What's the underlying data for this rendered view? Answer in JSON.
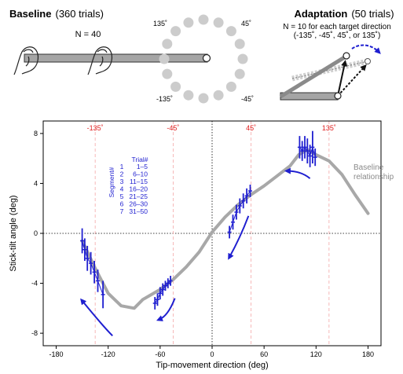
{
  "baseline_panel": {
    "title": "Baseline",
    "trials": "(360 trials)",
    "n_label": "N = 40",
    "direction_labels": {
      "top_left": "135˚",
      "top_right": "45˚",
      "bottom_left": "-135˚",
      "bottom_right": "-45˚"
    }
  },
  "adaptation_panel": {
    "title": "Adaptation",
    "trials": "(50 trials)",
    "n_label": "N = 10 for each target direction",
    "directions_note": "(-135˚, -45˚, 45˚, or 135˚)"
  },
  "chart_data": {
    "type": "line",
    "xlabel": "Tip-movement direction (deg)",
    "ylabel": "Stick-tilt angle (deg)",
    "xlim": [
      -195,
      195
    ],
    "ylim": [
      -9,
      9
    ],
    "xticks": [
      -180,
      -120,
      -60,
      0,
      60,
      120,
      180
    ],
    "yticks": [
      -8,
      -4,
      0,
      4,
      8
    ],
    "target_lines": [
      {
        "x": -135,
        "label": "-135˚"
      },
      {
        "x": -45,
        "label": "-45˚"
      },
      {
        "x": 45,
        "label": "45˚"
      },
      {
        "x": 135,
        "label": "135˚"
      }
    ],
    "zero_lines": true,
    "baseline": {
      "name": "Baseline relationship",
      "color": "#a8a8a8",
      "x": [
        -150,
        -135,
        -120,
        -105,
        -90,
        -80,
        -60,
        -45,
        -30,
        -15,
        0,
        15,
        30,
        45,
        60,
        75,
        90,
        100,
        110,
        120,
        135,
        150,
        165,
        180
      ],
      "y": [
        -0.6,
        -2.8,
        -4.8,
        -5.8,
        -6.0,
        -5.3,
        -4.5,
        -3.7,
        -2.7,
        -1.5,
        0.1,
        1.3,
        2.3,
        3.1,
        3.8,
        4.6,
        5.4,
        6.3,
        6.7,
        6.3,
        5.8,
        4.7,
        3.1,
        1.6
      ]
    },
    "adaptation": {
      "color": "#1f1fd0",
      "legend_title": "Trial#",
      "legend_axis": "Segment#",
      "segments": [
        {
          "segment": "1",
          "trials": "1–5"
        },
        {
          "segment": "2",
          "trials": "6–10"
        },
        {
          "segment": "3",
          "trials": "11–15"
        },
        {
          "segment": "4",
          "trials": "16–20"
        },
        {
          "segment": "5",
          "trials": "21–25"
        },
        {
          "segment": "6",
          "trials": "26–30"
        },
        {
          "segment": "7",
          "trials": "31–50"
        }
      ],
      "groups": [
        {
          "target": -135,
          "x": [
            -150,
            -147,
            -144,
            -140,
            -136,
            -132,
            -126
          ],
          "y": [
            -0.6,
            -1.3,
            -2.0,
            -2.4,
            -3.1,
            -3.8,
            -4.9
          ],
          "err": [
            1.0,
            0.9,
            1.0,
            0.9,
            0.9,
            0.9,
            1.1
          ]
        },
        {
          "target": -45,
          "x": [
            -66,
            -63,
            -60,
            -57,
            -54,
            -51,
            -48
          ],
          "y": [
            -5.6,
            -5.3,
            -4.8,
            -4.5,
            -4.2,
            -4.0,
            -3.8
          ],
          "err": [
            0.5,
            0.5,
            0.5,
            0.5,
            0.4,
            0.4,
            0.4
          ]
        },
        {
          "target": 45,
          "x": [
            20,
            24,
            28,
            32,
            36,
            40,
            44
          ],
          "y": [
            0.1,
            0.9,
            1.7,
            2.2,
            2.6,
            3.0,
            3.4
          ],
          "err": [
            0.5,
            0.6,
            0.6,
            0.6,
            0.6,
            0.6,
            0.5
          ]
        },
        {
          "target": 135,
          "x": [
            101,
            104,
            107,
            110,
            113,
            116,
            119
          ],
          "y": [
            6.9,
            6.6,
            6.9,
            6.6,
            6.2,
            6.9,
            6.1
          ],
          "err": [
            0.9,
            0.8,
            0.9,
            1.0,
            0.9,
            1.3,
            0.7
          ]
        }
      ],
      "arrows": [
        {
          "x": [
            -115,
            -125,
            -137,
            -150
          ],
          "y": [
            -8.2,
            -7.5,
            -6.5,
            -5.4
          ]
        },
        {
          "x": [
            -43,
            -48,
            -54,
            -61
          ],
          "y": [
            -5.2,
            -6.1,
            -6.7,
            -6.9
          ]
        },
        {
          "x": [
            42,
            36,
            28,
            20
          ],
          "y": [
            1.4,
            0.3,
            -0.9,
            -1.9
          ]
        },
        {
          "x": [
            113,
            106,
            98,
            87
          ],
          "y": [
            4.4,
            4.8,
            5.0,
            5.0
          ]
        }
      ]
    }
  }
}
